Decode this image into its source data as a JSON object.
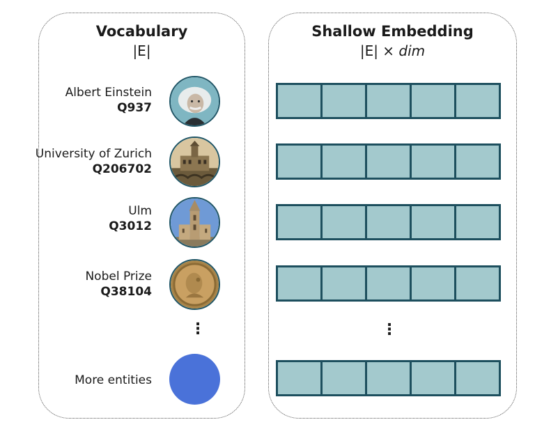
{
  "vocabulary": {
    "title": "Vocabulary",
    "subtitle": "|E|",
    "entities": [
      {
        "name": "Albert Einstein",
        "id": "Q937",
        "icon": "einstein-portrait-icon"
      },
      {
        "name": "University of Zurich",
        "id": "Q206702",
        "icon": "university-building-icon"
      },
      {
        "name": "Ulm",
        "id": "Q3012",
        "icon": "ulm-minster-icon"
      },
      {
        "name": "Nobel Prize",
        "id": "Q38104",
        "icon": "nobel-medal-icon"
      }
    ],
    "ellipsis": "⋮",
    "more": {
      "label": "More entities",
      "color": "#4a72d9"
    }
  },
  "embedding": {
    "title": "Shallow Embedding",
    "subtitle_prefix": "|E| × ",
    "subtitle_var": "dim",
    "rows_visible": 5,
    "cells_per_row": 5,
    "ellipsis": "⋮",
    "cell_color": "#a3c9cd",
    "border_color": "#1d4f5e"
  }
}
